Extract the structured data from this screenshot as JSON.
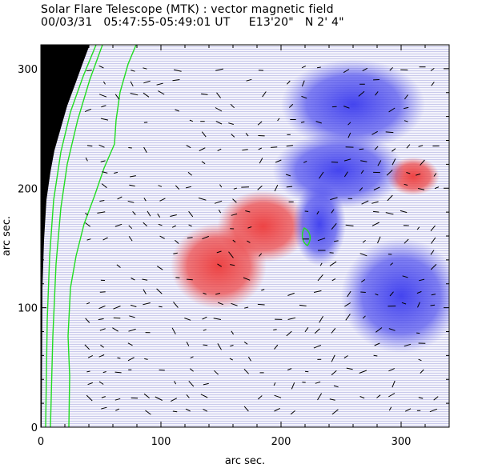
{
  "chart_data": {
    "type": "heatmap",
    "title": "Solar Flare Telescope (MTK) : vector magnetic field",
    "subtitle": "00/03/31   05:47:55-05:49:01 UT     E13'20\"   N 2' 4\"",
    "xlabel": "arc sec.",
    "ylabel": "arc sec.",
    "xlim": [
      0,
      340
    ],
    "ylim": [
      0,
      320
    ],
    "x_ticks": [
      0,
      100,
      200,
      300
    ],
    "y_ticks": [
      0,
      100,
      200,
      300
    ],
    "legend": [],
    "colors": {
      "positive_polarity": "#ee3b3b",
      "negative_polarity": "#3c3cee",
      "contour": "#22dd22",
      "outside_disk": "#000000",
      "vector": "#000000"
    },
    "regions": [
      {
        "polarity": "positive",
        "center": [
          185,
          168
        ],
        "radius": [
          38,
          30
        ]
      },
      {
        "polarity": "positive",
        "center": [
          148,
          135
        ],
        "radius": [
          40,
          36
        ]
      },
      {
        "polarity": "positive",
        "center": [
          310,
          210
        ],
        "radius": [
          22,
          16
        ]
      },
      {
        "polarity": "negative",
        "center": [
          232,
          170
        ],
        "radius": [
          22,
          35
        ]
      },
      {
        "polarity": "negative",
        "center": [
          248,
          215
        ],
        "radius": [
          55,
          32
        ]
      },
      {
        "polarity": "negative",
        "center": [
          260,
          270
        ],
        "radius": [
          60,
          38
        ]
      },
      {
        "polarity": "negative",
        "center": [
          300,
          110
        ],
        "radius": [
          50,
          48
        ]
      }
    ]
  }
}
